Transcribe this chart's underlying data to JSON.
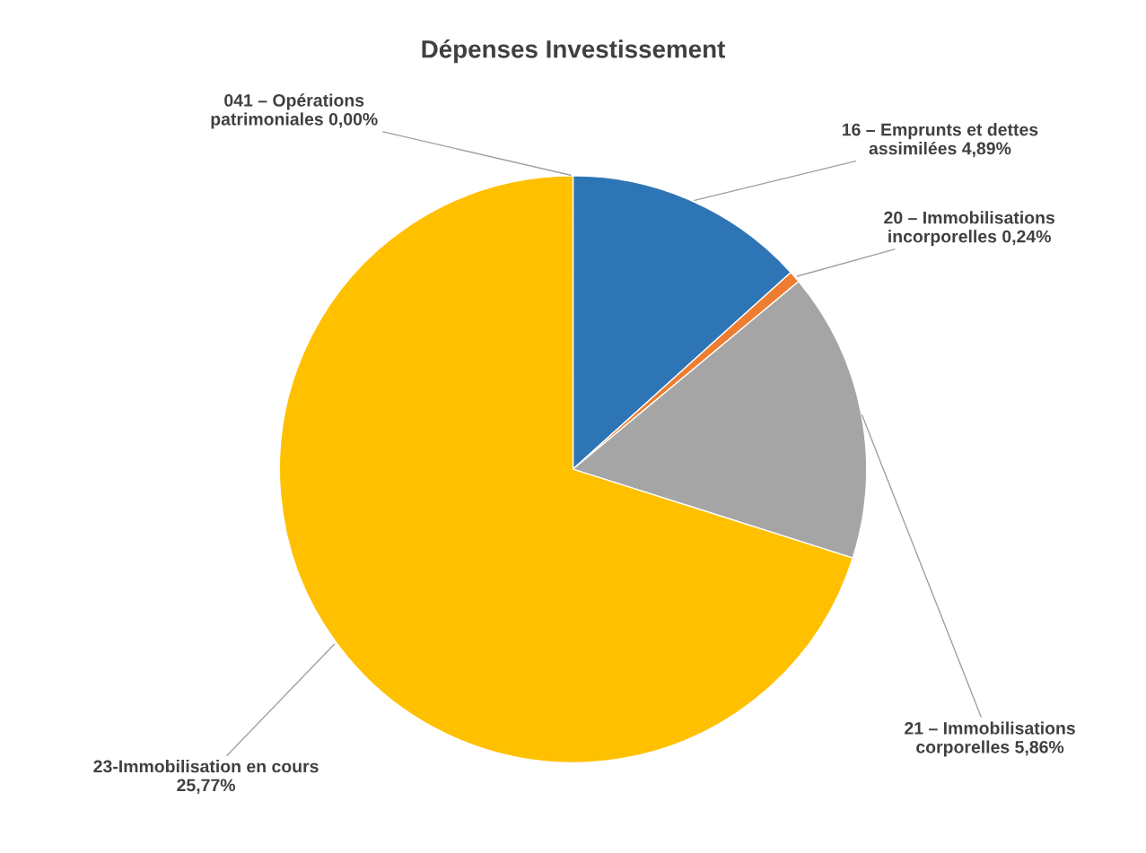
{
  "chart_data": {
    "type": "pie",
    "title": "Dépenses Investissement",
    "categories": [
      "041 – Opérations\npatrimoniales",
      "16 – Emprunts et dettes\nassimilées",
      "20 – Immobilisations\nincorporelles",
      "21 – Immobilisations\ncorporelles",
      "23-Immobilisation en cours\n"
    ],
    "values": [
      0.0,
      4.89,
      0.24,
      5.86,
      25.77
    ],
    "value_labels": [
      "0,00%",
      "4,89%",
      "0,24%",
      "5,86%",
      "25,77%"
    ],
    "colors": [
      "#4472c4",
      "#2e75b6",
      "#ed7d31",
      "#a5a5a5",
      "#ffc000"
    ],
    "legend": false
  }
}
